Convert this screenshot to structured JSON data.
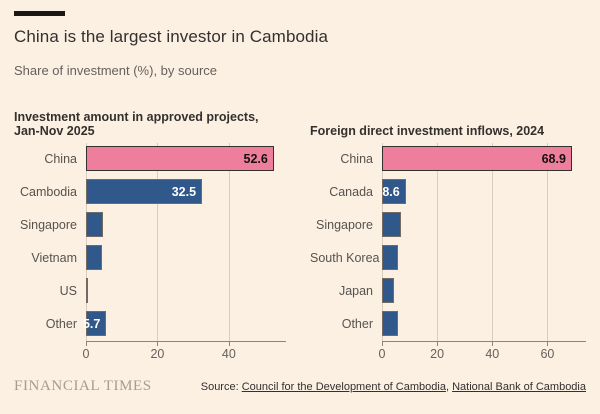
{
  "header": {
    "title": "China is the largest investor in Cambodia",
    "subtitle": "Share of investment (%), by source"
  },
  "colors": {
    "background": "#FCF0E3",
    "highlight_pink": "#EE7F9C",
    "bar_blue": "#30588A",
    "bar_border": "#716B64",
    "bar_border_highlight": "#33302E",
    "gridline": "#DACDBF",
    "axis_line": "#8C847A",
    "title_text": "#33302E",
    "muted_text": "#66605C",
    "value_label_dark": "#14120F",
    "value_label_light": "#FFFFFF"
  },
  "chart_data": [
    {
      "type": "bar",
      "orientation": "horizontal",
      "title": "Investment amount in approved projects, Jan-Nov 2025",
      "categories": [
        "China",
        "Cambodia",
        "Singapore",
        "Vietnam",
        "US",
        "Other"
      ],
      "values": [
        52.6,
        32.5,
        4.8,
        4.6,
        0.5,
        5.7
      ],
      "value_labels": [
        "52.6",
        "32.5",
        "",
        "",
        "",
        "5.7"
      ],
      "highlight_index": 0,
      "xlim": [
        0,
        56
      ],
      "xticks": [
        0,
        20,
        40
      ],
      "grid": true,
      "legend": "none"
    },
    {
      "type": "bar",
      "orientation": "horizontal",
      "title": "Foreign direct investment inflows, 2024",
      "categories": [
        "China",
        "Canada",
        "Singapore",
        "South Korea",
        "Japan",
        "Other"
      ],
      "values": [
        68.9,
        8.6,
        7.0,
        5.9,
        4.3,
        5.9
      ],
      "value_labels": [
        "68.9",
        "8.6",
        "",
        "",
        "",
        ""
      ],
      "highlight_index": 0,
      "xlim": [
        0,
        74
      ],
      "xticks": [
        0,
        20,
        40,
        60
      ],
      "grid": true,
      "legend": "none"
    }
  ],
  "footer": {
    "brand": "FINANCIAL TIMES",
    "source_prefix": "Source:",
    "sources": [
      "Council for the Development of Cambodia",
      "National Bank of Cambodia"
    ],
    "separator": ", "
  }
}
